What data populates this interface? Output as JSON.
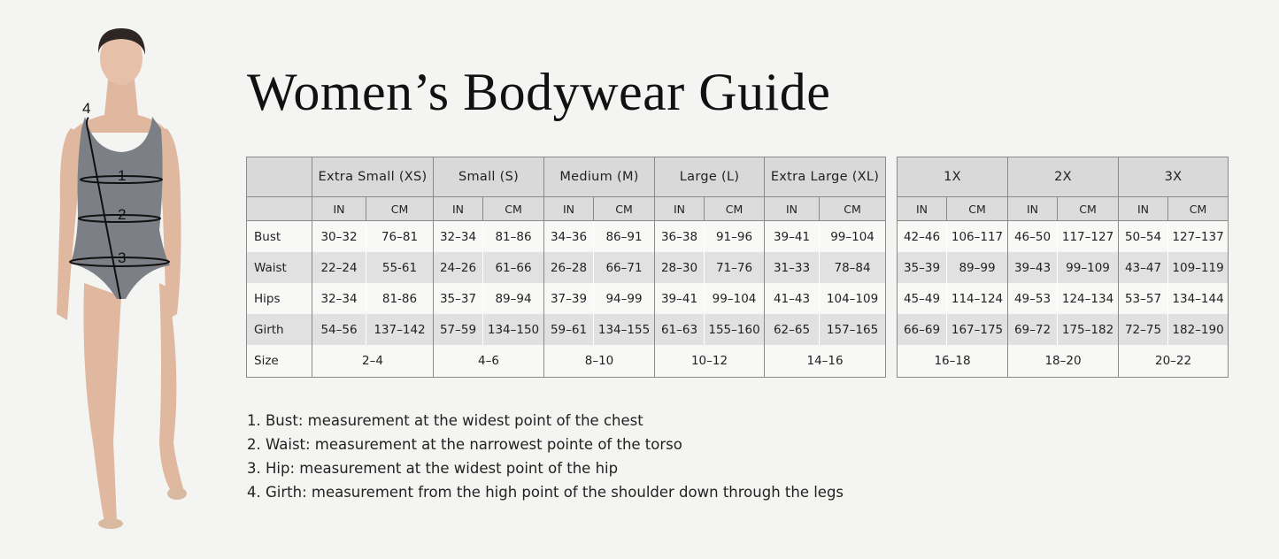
{
  "title": "Women’s Bodywear Guide",
  "figure": {
    "markers": [
      "1",
      "2",
      "3",
      "4"
    ]
  },
  "colors": {
    "leotard": "#7d7f86",
    "skin": "#e0b79f",
    "header_bg": "#d9d9d9",
    "row_alt_bg": "#e1e1e1"
  },
  "unit_labels": {
    "in": "IN",
    "cm": "CM"
  },
  "row_labels": [
    "Bust",
    "Waist",
    "Hips",
    "Girth",
    "Size"
  ],
  "table_main": {
    "sizes": [
      {
        "name": "Extra Small (XS)",
        "bust": [
          "30–32",
          "76–81"
        ],
        "waist": [
          "22–24",
          "55-61"
        ],
        "hips": [
          "32–34",
          "81-86"
        ],
        "girth": [
          "54–56",
          "137–142"
        ],
        "size": "2–4"
      },
      {
        "name": "Small (S)",
        "bust": [
          "32–34",
          "81–86"
        ],
        "waist": [
          "24–26",
          "61–66"
        ],
        "hips": [
          "35–37",
          "89–94"
        ],
        "girth": [
          "57–59",
          "134–150"
        ],
        "size": "4–6"
      },
      {
        "name": "Medium (M)",
        "bust": [
          "34–36",
          "86–91"
        ],
        "waist": [
          "26–28",
          "66–71"
        ],
        "hips": [
          "37–39",
          "94–99"
        ],
        "girth": [
          "59–61",
          "134–155"
        ],
        "size": "8–10"
      },
      {
        "name": "Large (L)",
        "bust": [
          "36–38",
          "91–96"
        ],
        "waist": [
          "28–30",
          "71–76"
        ],
        "hips": [
          "39–41",
          "99–104"
        ],
        "girth": [
          "61–63",
          "155–160"
        ],
        "size": "10–12"
      },
      {
        "name": "Extra Large (XL)",
        "bust": [
          "39–41",
          "99–104"
        ],
        "waist": [
          "31–33",
          "78–84"
        ],
        "hips": [
          "41–43",
          "104–109"
        ],
        "girth": [
          "62–65",
          "157–165"
        ],
        "size": "14–16"
      }
    ]
  },
  "table_plus": {
    "sizes": [
      {
        "name": "1X",
        "bust": [
          "42–46",
          "106–117"
        ],
        "waist": [
          "35–39",
          "89–99"
        ],
        "hips": [
          "45–49",
          "114–124"
        ],
        "girth": [
          "66–69",
          "167–175"
        ],
        "size": "16–18"
      },
      {
        "name": "2X",
        "bust": [
          "46–50",
          "117–127"
        ],
        "waist": [
          "39–43",
          "99–109"
        ],
        "hips": [
          "49–53",
          "124–134"
        ],
        "girth": [
          "69–72",
          "175–182"
        ],
        "size": "18–20"
      },
      {
        "name": "3X",
        "bust": [
          "50–54",
          "127–137"
        ],
        "waist": [
          "43–47",
          "109–119"
        ],
        "hips": [
          "53–57",
          "134–144"
        ],
        "girth": [
          "72–75",
          "182–190"
        ],
        "size": "20–22"
      }
    ]
  },
  "notes": [
    "1. Bust: measurement at the widest point of the chest",
    "2. Waist: measurement at the narrowest pointe of the torso",
    "3. Hip: measurement at the widest point of the hip",
    "4. Girth: measurement from the high point of the shoulder down through the legs"
  ]
}
